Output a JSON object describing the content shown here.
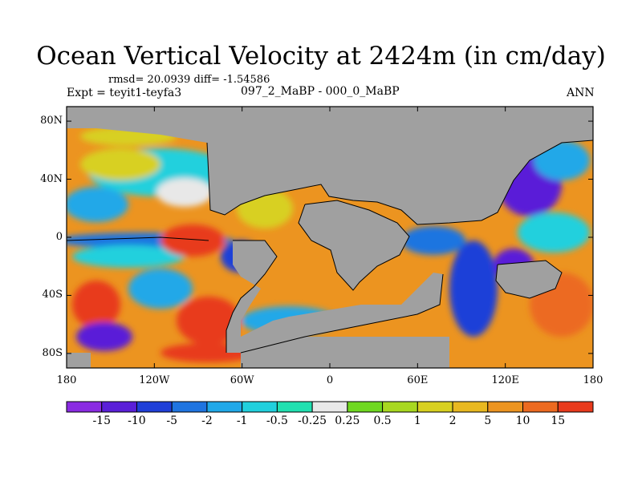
{
  "title": "Ocean Vertical Velocity at 2424m (in cm/day)",
  "stats": "rmsd= 20.0939 diff= -1.54586",
  "experiment": "Expt = teyit1-teyfa3",
  "subtitle": "097_2_MaBP - 000_0_MaBP",
  "season": "ANN",
  "map": {
    "projection": "cylindrical-equidistant",
    "lon_range": [
      -180,
      180
    ],
    "lat_range": [
      -90,
      90
    ],
    "land_color": "#a0a0a0"
  },
  "axes": {
    "lat_ticks": [
      {
        "label": "80N",
        "value": 80
      },
      {
        "label": "40N",
        "value": 40
      },
      {
        "label": "0",
        "value": 0
      },
      {
        "label": "40S",
        "value": -40
      },
      {
        "label": "80S",
        "value": -80
      }
    ],
    "lon_ticks": [
      {
        "label": "180",
        "value": -180
      },
      {
        "label": "120W",
        "value": -120
      },
      {
        "label": "60W",
        "value": -60
      },
      {
        "label": "0",
        "value": 0
      },
      {
        "label": "60E",
        "value": 60
      },
      {
        "label": "120E",
        "value": 120
      },
      {
        "label": "180",
        "value": 180
      }
    ]
  },
  "colorbar": {
    "colors": [
      "#8a2be2",
      "#5a1fd8",
      "#1f3fd8",
      "#1f74e0",
      "#20a8e8",
      "#21d0dd",
      "#20e0b0",
      "#e8e8e8",
      "#6fd820",
      "#a8d820",
      "#d8d020",
      "#e8b820",
      "#ec9420",
      "#ec6a20",
      "#e83a1c"
    ],
    "labels": [
      "-15",
      "-10",
      "-5",
      "-2",
      "-1",
      "-0.5",
      "-0.25",
      "0.25",
      "0.5",
      "1",
      "2",
      "5",
      "10",
      "15"
    ]
  }
}
